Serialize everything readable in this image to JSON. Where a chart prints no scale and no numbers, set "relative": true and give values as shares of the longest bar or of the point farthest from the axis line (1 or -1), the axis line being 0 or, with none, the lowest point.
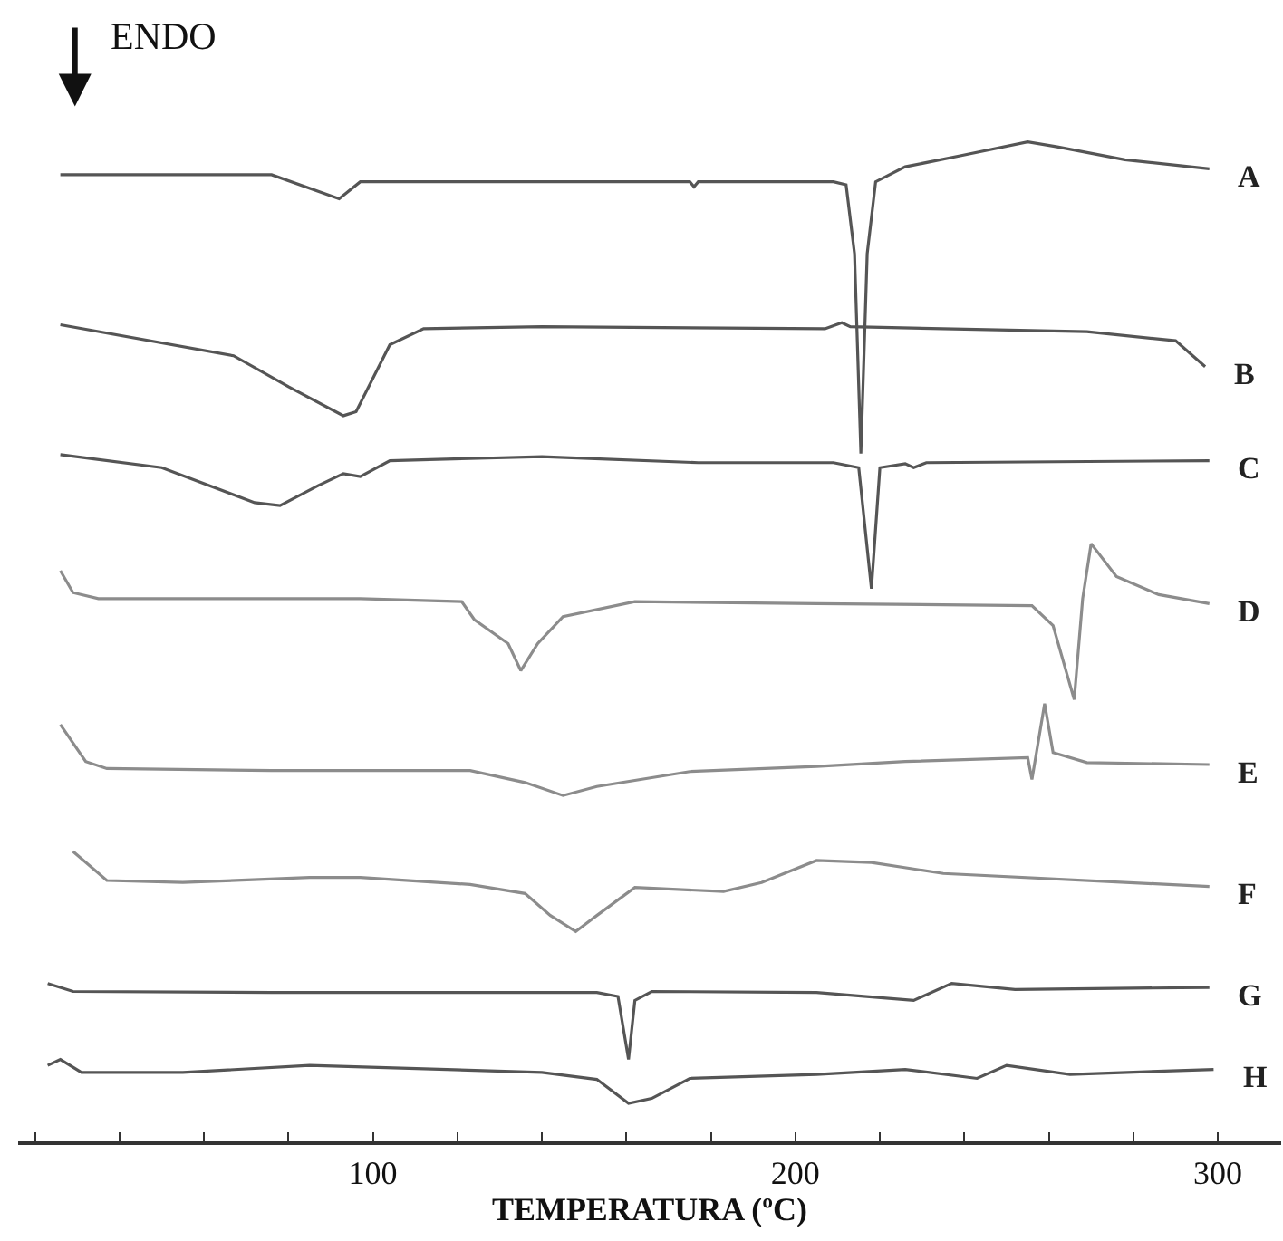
{
  "chart_data": {
    "type": "line",
    "relative": true,
    "xlabel": "TEMPERATURA (ºC)",
    "annotations": [
      "ENDO"
    ],
    "xlim": [
      16,
      315
    ],
    "xticks": [
      {
        "value": 20,
        "label": null
      },
      {
        "value": 40,
        "label": null
      },
      {
        "value": 60,
        "label": null
      },
      {
        "value": 80,
        "label": null
      },
      100,
      {
        "value": 120,
        "label": null
      },
      {
        "value": 140,
        "label": null
      },
      {
        "value": 160,
        "label": null
      },
      {
        "value": 180,
        "label": null
      },
      200,
      {
        "value": 220,
        "label": null
      },
      {
        "value": 240,
        "label": null
      },
      {
        "value": 260,
        "label": null
      },
      {
        "value": 280,
        "label": null
      },
      300
    ],
    "legend": false,
    "marker": "none",
    "line_style": "solid",
    "series": [
      {
        "name": "A",
        "color": "#555555",
        "x": [
          26,
          76,
          92,
          97,
          140,
          175,
          176,
          177,
          209,
          212,
          214,
          215.5,
          217,
          219,
          226,
          239,
          255,
          262,
          278,
          298
        ],
        "values": [
          0.967,
          0.967,
          0.943,
          0.96,
          0.96,
          0.96,
          0.955,
          0.96,
          0.96,
          0.957,
          0.888,
          0.688,
          0.888,
          0.96,
          0.975,
          0.986,
          1.0,
          0.995,
          0.982,
          0.973
        ]
      },
      {
        "name": "B",
        "color": "#555555",
        "x": [
          26,
          67,
          80,
          93,
          96,
          104,
          112,
          140,
          207,
          211,
          213,
          269,
          290,
          297
        ],
        "values": [
          0.817,
          0.786,
          0.755,
          0.726,
          0.73,
          0.797,
          0.813,
          0.815,
          0.813,
          0.819,
          0.815,
          0.81,
          0.801,
          0.775
        ]
      },
      {
        "name": "C",
        "color": "#555555",
        "x": [
          26,
          50,
          72,
          78,
          87,
          93,
          97,
          104,
          140,
          177,
          209,
          215,
          218,
          220,
          226,
          228,
          231,
          298
        ],
        "values": [
          0.687,
          0.674,
          0.639,
          0.636,
          0.656,
          0.668,
          0.665,
          0.681,
          0.685,
          0.679,
          0.679,
          0.674,
          0.553,
          0.674,
          0.678,
          0.674,
          0.679,
          0.681
        ]
      },
      {
        "name": "D",
        "color": "#8c8c8c",
        "x": [
          26,
          29,
          35,
          55,
          97,
          121,
          124,
          132,
          135,
          139,
          145,
          162,
          205,
          256,
          261,
          266,
          268,
          270,
          276,
          286,
          298
        ],
        "values": [
          0.571,
          0.549,
          0.543,
          0.543,
          0.543,
          0.54,
          0.522,
          0.498,
          0.471,
          0.498,
          0.525,
          0.54,
          0.538,
          0.536,
          0.516,
          0.442,
          0.543,
          0.598,
          0.565,
          0.547,
          0.538
        ]
      },
      {
        "name": "E",
        "color": "#8c8c8c",
        "x": [
          26,
          32,
          37,
          76,
          123,
          136,
          145,
          153,
          175,
          205,
          226,
          255,
          256,
          259,
          261,
          269,
          298
        ],
        "values": [
          0.417,
          0.38,
          0.373,
          0.371,
          0.371,
          0.359,
          0.346,
          0.355,
          0.37,
          0.375,
          0.38,
          0.384,
          0.362,
          0.438,
          0.389,
          0.379,
          0.377
        ]
      },
      {
        "name": "F",
        "color": "#8c8c8c",
        "x": [
          29,
          37,
          55,
          85,
          97,
          123,
          136,
          142,
          148,
          153,
          162,
          183,
          192,
          205,
          218,
          235,
          298
        ],
        "values": [
          0.29,
          0.261,
          0.259,
          0.264,
          0.264,
          0.257,
          0.248,
          0.226,
          0.21,
          0.226,
          0.254,
          0.25,
          0.259,
          0.281,
          0.279,
          0.268,
          0.255
        ]
      },
      {
        "name": "G",
        "color": "#555555",
        "x": [
          23,
          29,
          76,
          153,
          158,
          160.5,
          162,
          166,
          205,
          228,
          237,
          252,
          298
        ],
        "values": [
          0.158,
          0.15,
          0.149,
          0.149,
          0.145,
          0.082,
          0.141,
          0.15,
          0.149,
          0.141,
          0.158,
          0.152,
          0.154
        ]
      },
      {
        "name": "H",
        "color": "#555555",
        "x": [
          23,
          26,
          31,
          55,
          85,
          140,
          153,
          160.5,
          166,
          175,
          205,
          226,
          243,
          250,
          265,
          299
        ],
        "values": [
          0.076,
          0.082,
          0.069,
          0.069,
          0.076,
          0.069,
          0.062,
          0.038,
          0.043,
          0.063,
          0.067,
          0.072,
          0.063,
          0.076,
          0.067,
          0.072
        ]
      }
    ]
  }
}
